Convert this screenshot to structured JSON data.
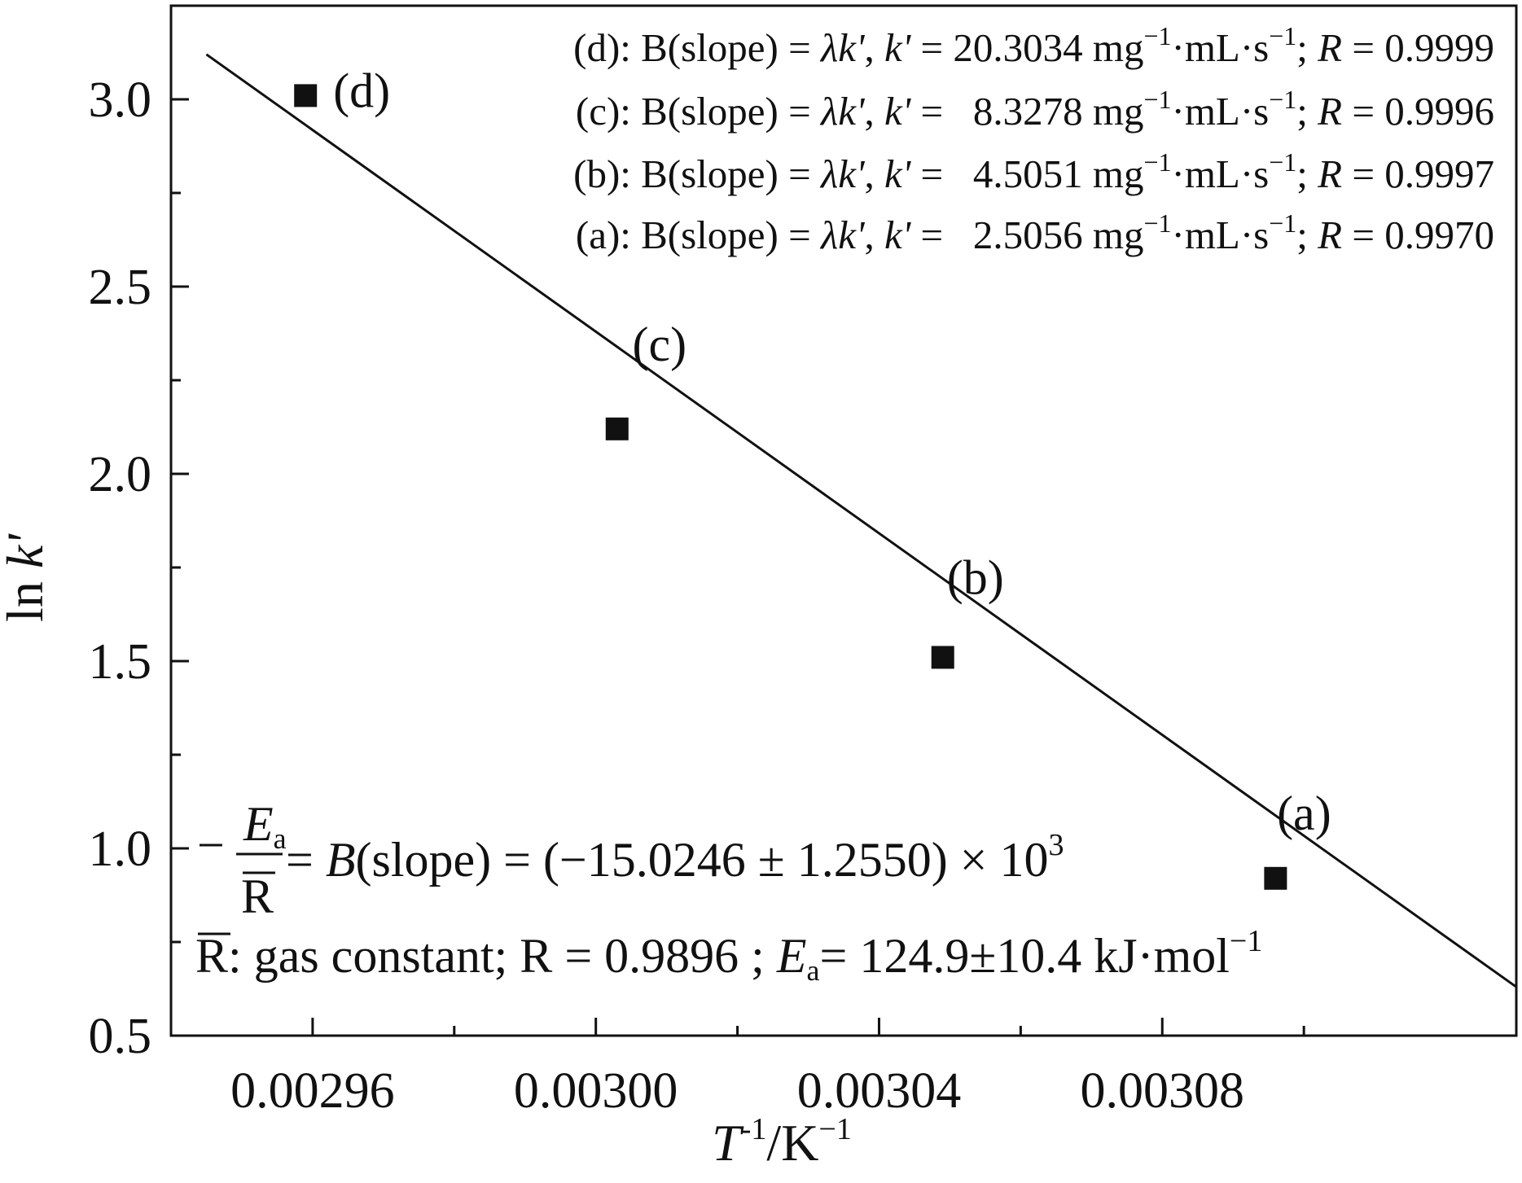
{
  "chart_data": {
    "type": "scatter",
    "title": "",
    "xlabel": {
      "var": "T",
      "exp": "-1",
      "unit": "/K",
      "unit_exp": "−1"
    },
    "ylabel": {
      "prefix": "ln ",
      "var": "k'"
    },
    "xlim": [
      0.00294,
      0.00313
    ],
    "ylim": [
      0.5,
      3.25
    ],
    "xticks": [
      "0.00296",
      "0.00300",
      "0.00304",
      "0.00308"
    ],
    "xtick_values": [
      0.00296,
      0.003,
      0.00304,
      0.00308
    ],
    "yticks": [
      "0.5",
      "1.0",
      "1.5",
      "2.0",
      "2.5",
      "3.0"
    ],
    "ytick_values": [
      0.5,
      1.0,
      1.5,
      2.0,
      2.5,
      3.0
    ],
    "grid": false,
    "series": [
      {
        "points": [
          {
            "label": "(d)",
            "x": 0.002959,
            "y": 3.01
          },
          {
            "label": "(c)",
            "x": 0.003003,
            "y": 2.12
          },
          {
            "label": "(b)",
            "x": 0.003049,
            "y": 1.51
          },
          {
            "label": "(a)",
            "x": 0.003096,
            "y": 0.92
          }
        ]
      }
    ],
    "fit_line": {
      "x": [
        0.002945,
        0.00313
      ],
      "y": [
        3.12,
        0.63
      ]
    },
    "fit_results": [
      {
        "id": "d",
        "head": "(d): B(slope) = ",
        "lam": "λk'",
        "mid": ", ",
        "k": "k'",
        "eq": " = 20.3034 mg",
        "unit": "·mL·s",
        "sep": "; ",
        "r": "R",
        "rval": " = 0.9999"
      },
      {
        "id": "c",
        "head": "(c): B(slope) = ",
        "lam": "λk'",
        "mid": ", ",
        "k": "k'",
        "eq": " =   8.3278 mg",
        "unit": "·mL·s",
        "sep": "; ",
        "r": "R",
        "rval": " = 0.9996"
      },
      {
        "id": "b",
        "head": "(b): B(slope) = ",
        "lam": "λk'",
        "mid": ", ",
        "k": "k'",
        "eq": " =   4.5051 mg",
        "unit": "·mL·s",
        "sep": "; ",
        "r": "R",
        "rval": " = 0.9997"
      },
      {
        "id": "a",
        "head": "(a): B(slope) = ",
        "lam": "λk'",
        "mid": ", ",
        "k": "k'",
        "eq": " =   2.5056 mg",
        "unit": "·mL·s",
        "sep": "; ",
        "r": "R",
        "rval": " = 0.9970"
      }
    ],
    "fit_exp": "−1",
    "equation": {
      "minus": "−",
      "num": "E",
      "num_sub": "a",
      "den": "R",
      "rhs_b": "B",
      "rhs": "(slope) = (−15.0246 ± 1.2550) × 10",
      "rhs_exp": "3",
      "eq_sign": " = "
    },
    "note": {
      "r": "R",
      "text1": ": gas constant; R = 0.9896 ; ",
      "ea": "E",
      "ea_sub": "a",
      "text2": "= 124.9±10.4 kJ·mol",
      "exp": "−1"
    }
  }
}
